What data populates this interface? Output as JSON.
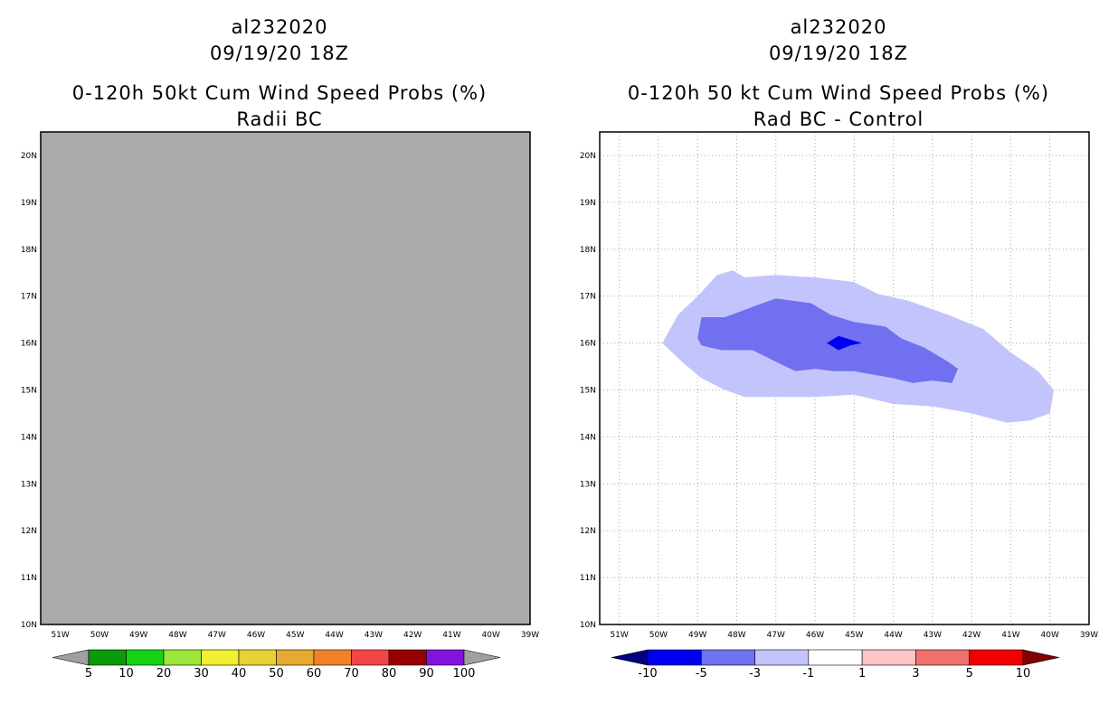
{
  "left_panel": {
    "title_line1": "al232020",
    "title_line2": "09/19/20 18Z",
    "title_line3": "0-120h 50kt Cum Wind Speed Probs (%)",
    "title_line4": "Radii BC",
    "map_fill_color": "#aaaaaa",
    "lat_labels": [
      "20N",
      "19N",
      "18N",
      "17N",
      "16N",
      "15N",
      "14N",
      "13N",
      "12N",
      "11N",
      "10N"
    ],
    "lon_labels": [
      "51W",
      "50W",
      "49W",
      "48W",
      "47W",
      "46W",
      "45W",
      "44W",
      "43W",
      "42W",
      "41W",
      "40W",
      "39W"
    ],
    "colorbar": {
      "colors": [
        "#0a9a0a",
        "#16d216",
        "#9ce63c",
        "#f0f030",
        "#e6d232",
        "#e6aa32",
        "#f08228",
        "#f04646",
        "#960000",
        "#8214dc"
      ],
      "labels": [
        "5",
        "10",
        "20",
        "30",
        "40",
        "50",
        "60",
        "70",
        "80",
        "90",
        "100"
      ],
      "end_color": "#a0a0a0"
    }
  },
  "right_panel": {
    "title_line1": "al232020",
    "title_line2": "09/19/20 18Z",
    "title_line3": "0-120h 50 kt Cum Wind Speed Probs (%)",
    "title_line4": "Rad BC - Control",
    "contour_colors": {
      "level_minus1_to_minus3": "#c4c4fc",
      "level_minus3_to_minus5": "#7070f0",
      "level_minus5_to_minus10": "#0000f0"
    },
    "lat_labels": [
      "20N",
      "19N",
      "18N",
      "17N",
      "16N",
      "15N",
      "14N",
      "13N",
      "12N",
      "11N",
      "10N"
    ],
    "lon_labels": [
      "51W",
      "50W",
      "49W",
      "48W",
      "47W",
      "46W",
      "45W",
      "44W",
      "43W",
      "42W",
      "41W",
      "40W",
      "39W"
    ],
    "colorbar": {
      "colors": [
        "#0000f0",
        "#7070f0",
        "#c4c4fc",
        "#ffffff",
        "#fcc4c4",
        "#f07070",
        "#f00000"
      ],
      "labels": [
        "-10",
        "-5",
        "-3",
        "-1",
        "1",
        "3",
        "5",
        "10"
      ],
      "start_color": "#000080",
      "end_color": "#800000"
    }
  }
}
